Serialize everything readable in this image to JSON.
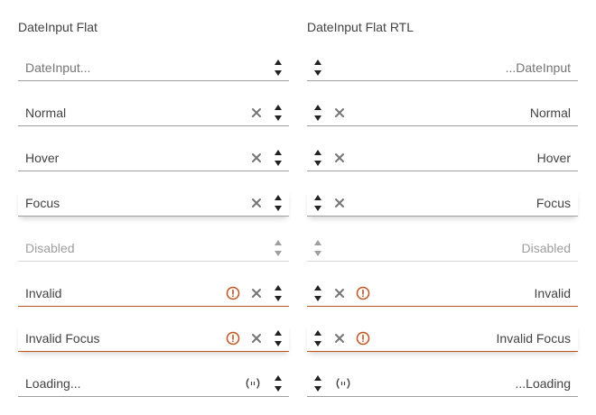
{
  "ltr": {
    "title": "DateInput Flat",
    "fields": [
      {
        "value": "DateInput...",
        "placeholder": true,
        "clear": false,
        "invalid": false,
        "loading": false,
        "disabled": false,
        "focus": false
      },
      {
        "value": "Normal",
        "placeholder": false,
        "clear": true,
        "invalid": false,
        "loading": false,
        "disabled": false,
        "focus": false
      },
      {
        "value": "Hover",
        "placeholder": false,
        "clear": true,
        "invalid": false,
        "loading": false,
        "disabled": false,
        "focus": false
      },
      {
        "value": "Focus",
        "placeholder": false,
        "clear": true,
        "invalid": false,
        "loading": false,
        "disabled": false,
        "focus": true
      },
      {
        "value": "Disabled",
        "placeholder": false,
        "clear": false,
        "invalid": false,
        "loading": false,
        "disabled": true,
        "focus": false
      },
      {
        "value": "Invalid",
        "placeholder": false,
        "clear": true,
        "invalid": true,
        "loading": false,
        "disabled": false,
        "focus": false
      },
      {
        "value": "Invalid Focus",
        "placeholder": false,
        "clear": true,
        "invalid": true,
        "loading": false,
        "disabled": false,
        "focus": true
      },
      {
        "value": "Loading...",
        "placeholder": false,
        "clear": false,
        "invalid": false,
        "loading": true,
        "disabled": false,
        "focus": false
      }
    ]
  },
  "rtl": {
    "title": "DateInput Flat RTL",
    "fields": [
      {
        "value": "...DateInput",
        "placeholder": true,
        "clear": false,
        "invalid": false,
        "loading": false,
        "disabled": false,
        "focus": false
      },
      {
        "value": "Normal",
        "placeholder": false,
        "clear": true,
        "invalid": false,
        "loading": false,
        "disabled": false,
        "focus": false
      },
      {
        "value": "Hover",
        "placeholder": false,
        "clear": true,
        "invalid": false,
        "loading": false,
        "disabled": false,
        "focus": false
      },
      {
        "value": "Focus",
        "placeholder": false,
        "clear": true,
        "invalid": false,
        "loading": false,
        "disabled": false,
        "focus": true
      },
      {
        "value": "Disabled",
        "placeholder": false,
        "clear": false,
        "invalid": false,
        "loading": false,
        "disabled": true,
        "focus": false
      },
      {
        "value": "Invalid",
        "placeholder": false,
        "clear": true,
        "invalid": true,
        "loading": false,
        "disabled": false,
        "focus": false
      },
      {
        "value": "Invalid Focus",
        "placeholder": false,
        "clear": true,
        "invalid": true,
        "loading": false,
        "disabled": false,
        "focus": true
      },
      {
        "value": "...Loading",
        "placeholder": false,
        "clear": false,
        "invalid": false,
        "loading": true,
        "disabled": false,
        "focus": false
      }
    ]
  },
  "icons": {
    "clear": "x-icon",
    "invalid": "exclamation-circle-icon",
    "loading": "loading-icon",
    "increase": "caret-up-icon",
    "decrease": "caret-down-icon"
  },
  "colors": {
    "text": "#424242",
    "placeholder": "#757575",
    "disabled": "#9e9e9e",
    "border": "#9e9e9e",
    "invalid": "#c0521f",
    "icon": "#757575"
  }
}
